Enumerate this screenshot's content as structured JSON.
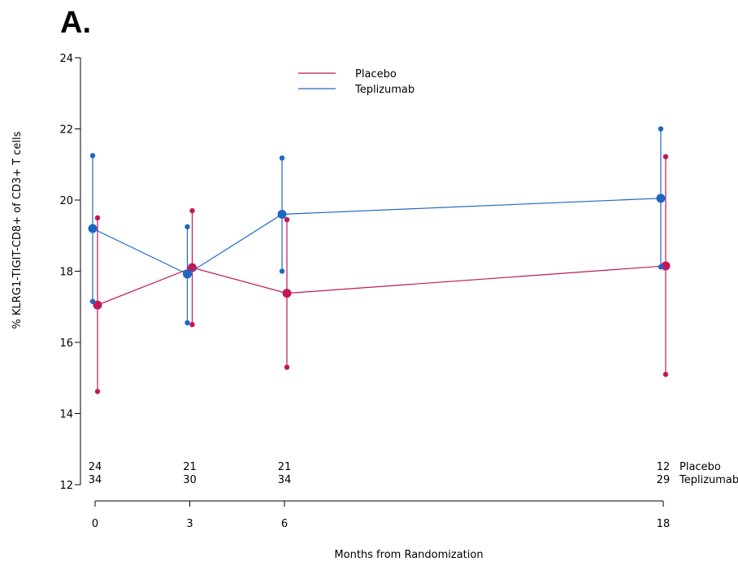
{
  "panel_label": "A.",
  "chart_data": {
    "type": "line",
    "xlabel": "Months from Randomization",
    "ylabel": "% KLRG1-TIGIT-CD8+ of CD3+ T cells",
    "xlim": [
      0,
      18
    ],
    "ylim": [
      12,
      24
    ],
    "x_ticks": [
      "0",
      "3",
      "6",
      "18"
    ],
    "y_ticks": [
      "12",
      "14",
      "16",
      "18",
      "20",
      "22",
      "24"
    ],
    "legend_position": "top-center",
    "x": [
      0,
      3,
      6,
      18
    ],
    "series": [
      {
        "name": "Placebo",
        "color": "#c0185a",
        "mean": [
          17.05,
          18.1,
          17.38,
          18.15
        ],
        "upper": [
          19.5,
          19.7,
          19.45,
          21.22
        ],
        "lower": [
          14.62,
          16.5,
          15.3,
          15.1
        ]
      },
      {
        "name": "Teplizumab",
        "color": "#1f66c2",
        "mean": [
          19.2,
          17.92,
          19.6,
          20.05
        ],
        "upper": [
          21.25,
          19.25,
          21.18,
          22.0
        ],
        "lower": [
          17.15,
          16.55,
          18.0,
          18.12
        ]
      }
    ],
    "n_at_risk": {
      "Placebo": [
        "24",
        "21",
        "21",
        "12"
      ],
      "Teplizumab": [
        "34",
        "30",
        "34",
        "29"
      ]
    }
  }
}
